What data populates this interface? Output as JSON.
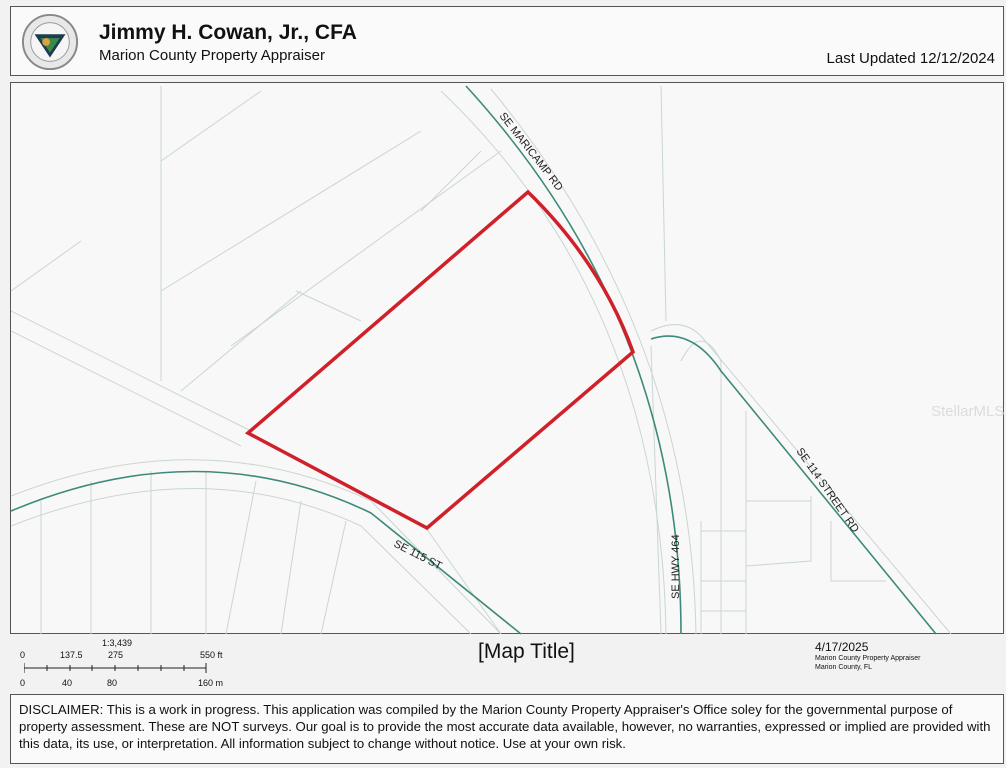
{
  "header": {
    "name": "Jimmy H. Cowan, Jr., CFA",
    "subtitle": "Marion County Property Appraiser",
    "last_updated": "Last Updated 12/12/2024",
    "logo_text": "PROPERTY APPRAISER MARION COUNTY FLORIDA"
  },
  "map": {
    "roads": [
      "SE MARICAMP RD",
      "SE 114 STREET RD",
      "SE 115 ST",
      "SE HWY 464"
    ],
    "parcel_color": "#d0202a",
    "road_color": "#3d8a7a",
    "watermark": "StellarMLS"
  },
  "footer": {
    "scale_ratio": "1:3,439",
    "scale_ft": [
      "0",
      "137.5",
      "275",
      "550 ft"
    ],
    "scale_m": [
      "0",
      "40",
      "80",
      "160 m"
    ],
    "map_title": "[Map Title]",
    "date": "4/17/2025",
    "org_line1": "Marion County Property Appraiser",
    "org_line2": "Marion County, FL"
  },
  "disclaimer": "DISCLAIMER: This is a work in progress. This application was compiled by the Marion County Property Appraiser's Office soley for the governmental purpose of property assessment. These are NOT surveys. Our goal is to provide the most accurate data available, however, no warranties, expressed or implied are provided with this data, its use, or interpretation. All information subject to change without notice. Use at your own risk."
}
